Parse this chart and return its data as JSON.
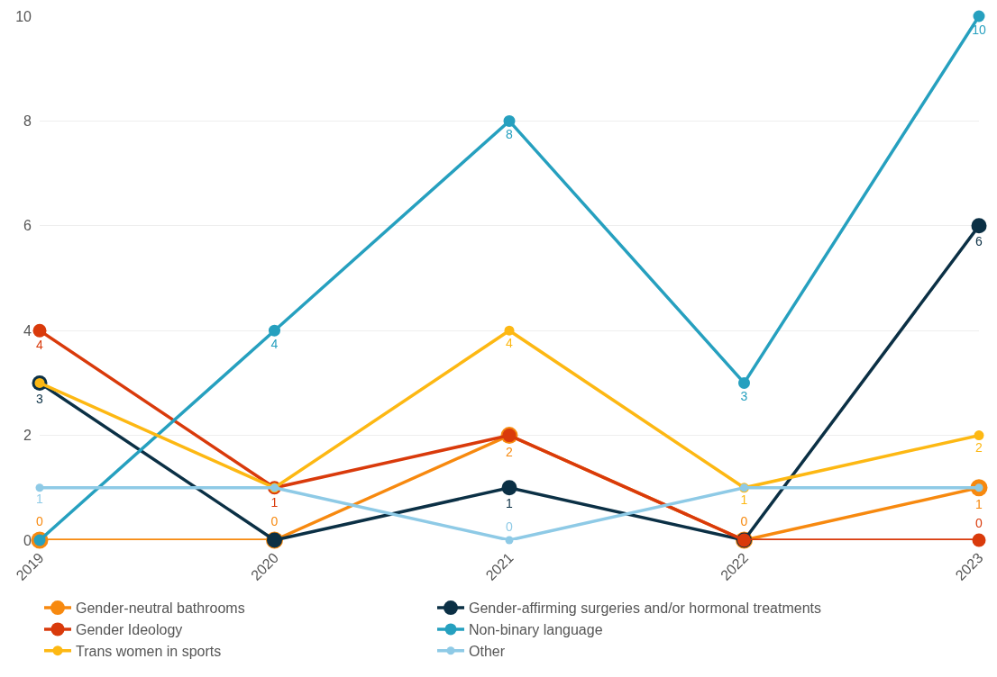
{
  "chart_data": {
    "type": "line",
    "categories": [
      "2019",
      "2020",
      "2021",
      "2022",
      "2023"
    ],
    "series": [
      {
        "name": "Gender-neutral bathrooms",
        "color": "#f7890f",
        "values": [
          0,
          0,
          2,
          0,
          1
        ],
        "value_labels": [
          "0",
          "0",
          "2",
          "0",
          "1"
        ]
      },
      {
        "name": "Gender-affirming surgeries and/or hormonal treatments",
        "color": "#0b3045",
        "values": [
          3,
          0,
          1,
          0,
          6
        ],
        "value_labels": [
          "3",
          null,
          "1",
          null,
          "6"
        ]
      },
      {
        "name": "Gender Ideology",
        "color": "#d93a0b",
        "values": [
          4,
          1,
          2,
          0,
          0
        ],
        "value_labels": [
          "4",
          "1",
          null,
          null,
          "0"
        ]
      },
      {
        "name": "Non-binary language",
        "color": "#26a0bf",
        "values": [
          0,
          4,
          8,
          3,
          10
        ],
        "value_labels": [
          null,
          "4",
          "8",
          "3",
          "10"
        ]
      },
      {
        "name": "Trans women in sports",
        "color": "#fdb813",
        "values": [
          3,
          1,
          4,
          1,
          2
        ],
        "value_labels": [
          null,
          null,
          "4",
          "1",
          "2"
        ]
      },
      {
        "name": "Other",
        "color": "#8ecae6",
        "values": [
          1,
          1,
          0,
          1,
          1
        ],
        "value_labels": [
          "1",
          null,
          "0",
          null,
          null
        ]
      }
    ],
    "ylim": [
      0,
      10
    ],
    "yticks": [
      0,
      2,
      4,
      6,
      8,
      10
    ],
    "grid": "y",
    "legend": "bottom",
    "marker": "circle",
    "line_style": "solid"
  }
}
